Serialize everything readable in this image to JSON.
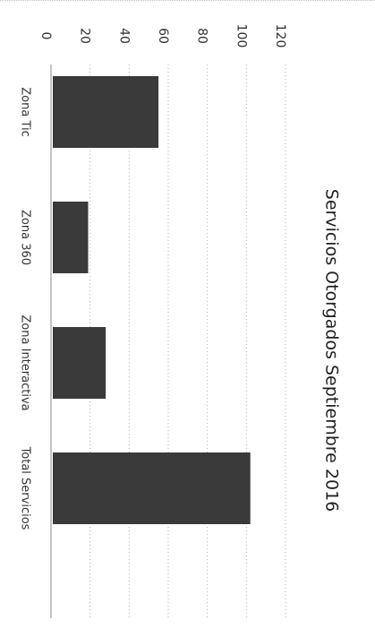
{
  "chart_data": {
    "type": "bar",
    "orientation": "rotated-90",
    "title": "Servicios Otorgados Septiembre 2016",
    "categories": [
      "Zona Tic",
      "Zona 360",
      "Zona Interactiva",
      "Total Servicios"
    ],
    "values": [
      55,
      19,
      28,
      102
    ],
    "ylim": [
      0,
      120
    ],
    "yticks": [
      0,
      20,
      40,
      60,
      80,
      100,
      120
    ],
    "xlabel": "",
    "ylabel": "",
    "grid": true,
    "legend": "none",
    "bar_color": "#3a3a3a"
  }
}
